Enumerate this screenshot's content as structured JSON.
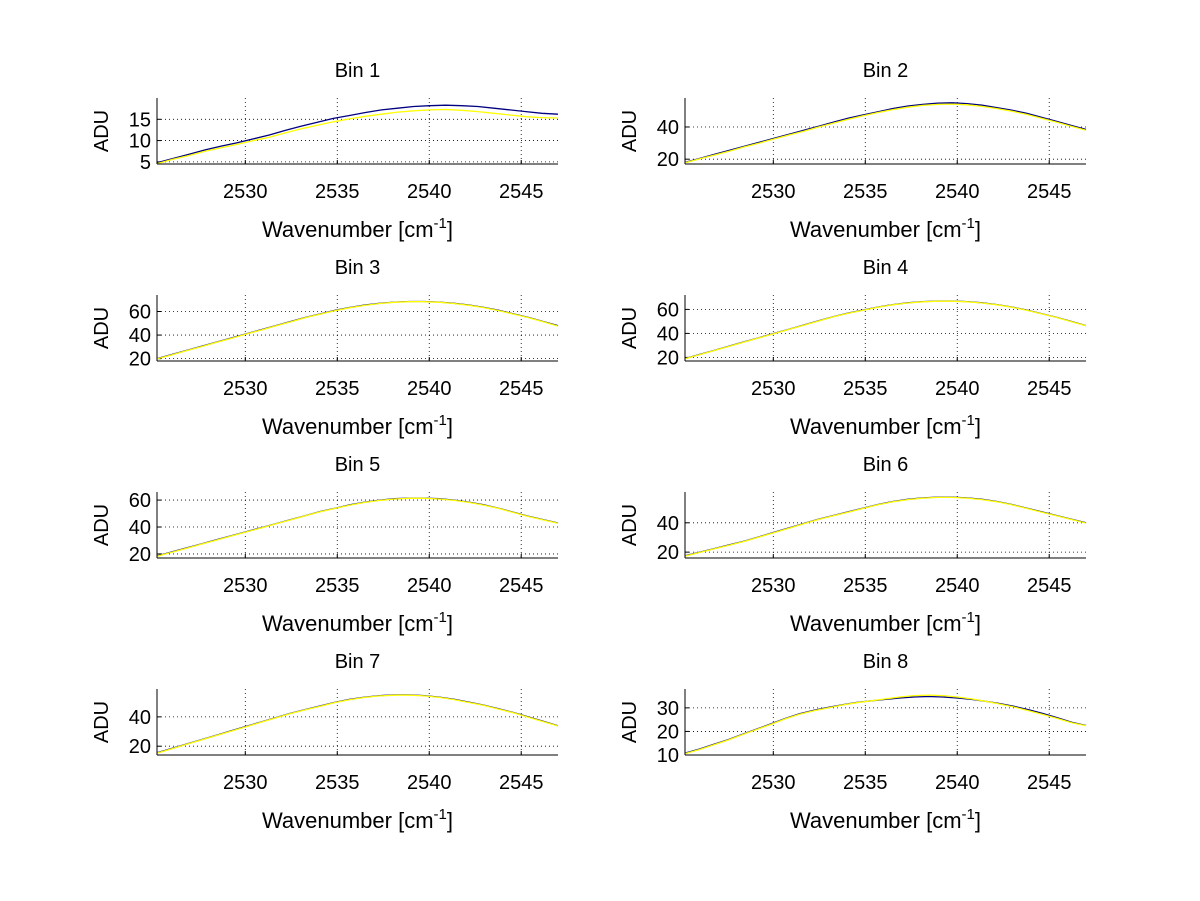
{
  "colors": {
    "series_dark": "#000080",
    "series_light": "#ffff00"
  },
  "chart_data": [
    {
      "type": "line",
      "title": "Bin 1",
      "ylabel": "ADU",
      "xlabel": "Wavenumber [cm",
      "xlabel_sup": "-1",
      "xlabel_close": "]",
      "xlim": [
        2525.2,
        2547.0
      ],
      "ylim": [
        4.5,
        20.0
      ],
      "xticks": [
        "2530",
        "2535",
        "2540",
        "2545"
      ],
      "yticks": [
        "5",
        "10",
        "15"
      ],
      "grid": true,
      "x_start": 2525.2,
      "x_end": 2547.0,
      "series": [
        {
          "name": "dark",
          "color": "#000080",
          "values": [
            4.8,
            5.8,
            6.8,
            7.8,
            8.7,
            9.5,
            10.4,
            11.3,
            12.4,
            13.4,
            14.3,
            15.2,
            15.9,
            16.6,
            17.2,
            17.6,
            18.0,
            18.2,
            18.3,
            18.2,
            18.0,
            17.6,
            17.2,
            16.8,
            16.4,
            16.2
          ]
        },
        {
          "name": "light",
          "color": "#ffff00",
          "values": [
            4.6,
            5.6,
            6.5,
            7.5,
            8.3,
            9.1,
            10.0,
            10.8,
            11.8,
            12.8,
            13.6,
            14.4,
            15.1,
            15.7,
            16.2,
            16.7,
            17.0,
            17.2,
            17.3,
            17.1,
            16.8,
            16.4,
            16.0,
            15.6,
            15.4,
            15.3
          ]
        }
      ]
    },
    {
      "type": "line",
      "title": "Bin 2",
      "ylabel": "ADU",
      "xlabel": "Wavenumber [cm",
      "xlabel_sup": "-1",
      "xlabel_close": "]",
      "xlim": [
        2525.2,
        2547.0
      ],
      "ylim": [
        17.0,
        58.0
      ],
      "xticks": [
        "2530",
        "2535",
        "2540",
        "2545"
      ],
      "yticks": [
        "20",
        "40"
      ],
      "grid": true,
      "x_start": 2525.2,
      "x_end": 2547.0,
      "series": [
        {
          "name": "dark",
          "color": "#000080",
          "values": [
            18.0,
            20.5,
            23.0,
            25.5,
            28.0,
            30.5,
            33.0,
            35.5,
            38.0,
            40.5,
            43.0,
            45.5,
            47.5,
            49.5,
            51.5,
            53.0,
            54.0,
            54.8,
            55.0,
            54.5,
            53.5,
            52.0,
            50.5,
            48.5,
            46.0,
            43.5,
            41.0,
            38.5
          ]
        },
        {
          "name": "light",
          "color": "#ffff00",
          "values": [
            17.8,
            20.2,
            22.6,
            25.0,
            27.6,
            30.0,
            32.5,
            35.0,
            37.4,
            40.0,
            42.4,
            44.8,
            47.0,
            49.0,
            50.8,
            52.3,
            53.4,
            54.0,
            54.2,
            53.8,
            52.8,
            51.4,
            49.8,
            47.8,
            45.4,
            43.0,
            40.5,
            38.0
          ]
        }
      ]
    },
    {
      "type": "line",
      "title": "Bin 3",
      "ylabel": "ADU",
      "xlabel": "Wavenumber [cm",
      "xlabel_sup": "-1",
      "xlabel_close": "]",
      "xlim": [
        2525.2,
        2547.0
      ],
      "ylim": [
        18.0,
        74.0
      ],
      "xticks": [
        "2530",
        "2535",
        "2540",
        "2545"
      ],
      "yticks": [
        "20",
        "40",
        "60"
      ],
      "grid": true,
      "x_start": 2525.2,
      "x_end": 2547.0,
      "series": [
        {
          "name": "dark",
          "color": "#000080",
          "values": [
            20.0,
            23.5,
            27.0,
            30.5,
            34.0,
            37.5,
            41.0,
            44.5,
            48.0,
            51.5,
            55.0,
            58.0,
            61.0,
            63.5,
            65.5,
            67.0,
            68.0,
            68.5,
            68.5,
            68.0,
            67.0,
            65.5,
            63.5,
            61.0,
            58.0,
            55.0,
            51.5,
            48.0
          ]
        },
        {
          "name": "light",
          "color": "#ffff00",
          "values": [
            19.8,
            23.2,
            26.8,
            30.2,
            33.8,
            37.2,
            40.8,
            44.2,
            47.8,
            51.2,
            54.8,
            57.8,
            60.8,
            63.2,
            65.2,
            66.8,
            67.8,
            68.3,
            68.3,
            67.8,
            66.8,
            65.3,
            63.3,
            60.8,
            57.8,
            54.8,
            51.3,
            47.6
          ]
        }
      ]
    },
    {
      "type": "line",
      "title": "Bin 4",
      "ylabel": "ADU",
      "xlabel": "Wavenumber [cm",
      "xlabel_sup": "-1",
      "xlabel_close": "]",
      "xlim": [
        2525.2,
        2547.0
      ],
      "ylim": [
        17.0,
        72.0
      ],
      "xticks": [
        "2530",
        "2535",
        "2540",
        "2545"
      ],
      "yticks": [
        "20",
        "40",
        "60"
      ],
      "grid": true,
      "x_start": 2525.2,
      "x_end": 2547.0,
      "series": [
        {
          "name": "dark",
          "color": "#000080",
          "values": [
            19.0,
            22.5,
            26.0,
            29.5,
            33.0,
            36.5,
            40.0,
            43.5,
            47.0,
            50.5,
            54.0,
            57.0,
            59.5,
            62.0,
            64.0,
            65.5,
            66.5,
            67.0,
            67.0,
            66.5,
            65.5,
            64.0,
            62.0,
            59.5,
            56.5,
            53.5,
            50.0,
            46.5
          ]
        },
        {
          "name": "light",
          "color": "#ffff00",
          "values": [
            18.8,
            22.3,
            25.8,
            29.3,
            32.8,
            36.3,
            39.8,
            43.3,
            46.8,
            50.3,
            53.8,
            56.8,
            59.3,
            61.8,
            63.8,
            65.3,
            66.3,
            66.8,
            66.8,
            66.3,
            65.3,
            63.8,
            61.8,
            59.3,
            56.3,
            53.3,
            49.8,
            46.3
          ]
        }
      ]
    },
    {
      "type": "line",
      "title": "Bin 5",
      "ylabel": "ADU",
      "xlabel": "Wavenumber [cm",
      "xlabel_sup": "-1",
      "xlabel_close": "]",
      "xlim": [
        2525.2,
        2547.0
      ],
      "ylim": [
        17.0,
        66.0
      ],
      "xticks": [
        "2530",
        "2535",
        "2540",
        "2545"
      ],
      "yticks": [
        "20",
        "40",
        "60"
      ],
      "grid": true,
      "x_start": 2525.2,
      "x_end": 2547.0,
      "series": [
        {
          "name": "dark",
          "color": "#000080",
          "values": [
            18.5,
            21.5,
            24.5,
            27.5,
            30.5,
            33.5,
            36.5,
            39.5,
            42.5,
            45.5,
            48.5,
            51.5,
            54.0,
            56.5,
            58.5,
            60.0,
            61.0,
            61.5,
            61.5,
            61.0,
            60.0,
            58.5,
            56.5,
            54.0,
            51.0,
            48.0,
            45.5,
            43.0
          ]
        },
        {
          "name": "light",
          "color": "#ffff00",
          "values": [
            18.3,
            21.3,
            24.3,
            27.3,
            30.3,
            33.3,
            36.3,
            39.3,
            42.3,
            45.3,
            48.3,
            51.3,
            53.8,
            56.3,
            58.3,
            59.8,
            60.8,
            61.3,
            61.3,
            60.8,
            59.8,
            58.3,
            56.3,
            53.8,
            50.8,
            47.8,
            45.3,
            42.8
          ]
        }
      ]
    },
    {
      "type": "line",
      "title": "Bin 6",
      "ylabel": "ADU",
      "xlabel": "Wavenumber [cm",
      "xlabel_sup": "-1",
      "xlabel_close": "]",
      "xlim": [
        2525.2,
        2547.0
      ],
      "ylim": [
        16.0,
        61.0
      ],
      "xticks": [
        "2530",
        "2535",
        "2540",
        "2545"
      ],
      "yticks": [
        "20",
        "40"
      ],
      "grid": true,
      "x_start": 2525.2,
      "x_end": 2547.0,
      "series": [
        {
          "name": "dark",
          "color": "#000080",
          "values": [
            17.5,
            20.0,
            22.5,
            25.0,
            27.5,
            30.5,
            33.5,
            36.5,
            39.5,
            42.5,
            45.0,
            47.5,
            50.0,
            52.5,
            54.5,
            56.0,
            57.0,
            57.5,
            57.5,
            57.0,
            56.0,
            54.5,
            52.5,
            50.0,
            47.5,
            45.0,
            42.5,
            40.0
          ]
        },
        {
          "name": "light",
          "color": "#ffff00",
          "values": [
            17.3,
            19.8,
            22.3,
            24.8,
            27.3,
            30.3,
            33.3,
            36.3,
            39.3,
            42.3,
            44.8,
            47.3,
            49.8,
            52.3,
            54.3,
            55.8,
            56.8,
            57.3,
            57.3,
            56.8,
            55.8,
            54.3,
            52.3,
            49.8,
            47.3,
            44.8,
            42.3,
            39.8
          ]
        }
      ]
    },
    {
      "type": "line",
      "title": "Bin 7",
      "ylabel": "ADU",
      "xlabel": "Wavenumber [cm",
      "xlabel_sup": "-1",
      "xlabel_close": "]",
      "xlim": [
        2525.2,
        2547.0
      ],
      "ylim": [
        14.0,
        59.0
      ],
      "xticks": [
        "2530",
        "2535",
        "2540",
        "2545"
      ],
      "yticks": [
        "20",
        "40"
      ],
      "grid": true,
      "x_start": 2525.2,
      "x_end": 2547.0,
      "series": [
        {
          "name": "dark",
          "color": "#000080",
          "values": [
            15.5,
            18.5,
            21.5,
            24.5,
            27.5,
            30.5,
            33.5,
            36.5,
            39.5,
            42.5,
            45.0,
            47.5,
            50.0,
            52.0,
            53.5,
            54.5,
            55.0,
            55.0,
            54.5,
            53.5,
            52.0,
            50.0,
            48.0,
            45.5,
            43.0,
            40.0,
            37.0,
            34.0
          ]
        },
        {
          "name": "light",
          "color": "#ffff00",
          "values": [
            15.3,
            18.3,
            21.3,
            24.3,
            27.3,
            30.3,
            33.3,
            36.3,
            39.3,
            42.3,
            44.8,
            47.3,
            49.8,
            51.8,
            53.3,
            54.3,
            54.8,
            54.8,
            54.3,
            53.3,
            51.8,
            49.8,
            47.8,
            45.3,
            42.8,
            39.8,
            36.8,
            33.8
          ]
        }
      ]
    },
    {
      "type": "line",
      "title": "Bin 8",
      "ylabel": "ADU",
      "xlabel": "Wavenumber [cm",
      "xlabel_sup": "-1",
      "xlabel_close": "]",
      "xlim": [
        2525.2,
        2547.0
      ],
      "ylim": [
        10.0,
        38.0
      ],
      "xticks": [
        "2530",
        "2535",
        "2540",
        "2545"
      ],
      "yticks": [
        "10",
        "20",
        "30"
      ],
      "grid": true,
      "x_start": 2525.2,
      "x_end": 2547.0,
      "series": [
        {
          "name": "dark",
          "color": "#000080",
          "values": [
            10.8,
            12.5,
            14.5,
            16.5,
            18.8,
            21.0,
            23.2,
            25.5,
            27.5,
            29.0,
            30.2,
            31.3,
            32.3,
            33.0,
            33.6,
            34.2,
            34.6,
            34.8,
            34.6,
            34.2,
            33.6,
            32.8,
            31.8,
            30.6,
            29.2,
            27.6,
            25.8,
            23.9,
            22.5
          ]
        },
        {
          "name": "light",
          "color": "#ffff00",
          "values": [
            10.6,
            12.3,
            14.3,
            16.3,
            18.6,
            20.8,
            23.0,
            25.3,
            27.3,
            28.8,
            30.0,
            31.2,
            32.2,
            33.0,
            33.8,
            34.6,
            35.2,
            35.4,
            35.2,
            34.6,
            33.8,
            32.8,
            31.6,
            30.3,
            28.8,
            27.2,
            25.5,
            23.7,
            22.4
          ]
        }
      ]
    }
  ]
}
